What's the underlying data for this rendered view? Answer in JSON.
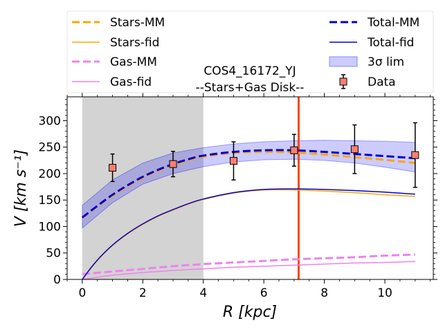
{
  "chart_data": {
    "type": "line",
    "title": "COS4_16172_YJ",
    "subtitle": "--Stars+Gas Disk--",
    "xlabel": "R [kpc]",
    "ylabel": "V [km s⁻¹]",
    "xlim": [
      -0.5,
      11.6
    ],
    "ylim": [
      0,
      345
    ],
    "xticks": [
      0,
      2,
      4,
      6,
      8,
      10
    ],
    "yticks": [
      0,
      50,
      100,
      150,
      200,
      250,
      300
    ],
    "grid": false,
    "legend_position": "top",
    "shaded_region": {
      "x_start": 0,
      "x_end": 4,
      "color": "#d3d3d3"
    },
    "vertical_line": {
      "x": 7.15,
      "color": "#ff4500"
    },
    "band": {
      "name": "3σ lim",
      "color": "#0000ff",
      "x": [
        0,
        1,
        2,
        3,
        4,
        5,
        6,
        7,
        8,
        9,
        10,
        11
      ],
      "lower": [
        97,
        145,
        180,
        200,
        213,
        222,
        226,
        227,
        225,
        220,
        212,
        203
      ],
      "upper": [
        140,
        188,
        220,
        239,
        249,
        256,
        260,
        262,
        263,
        262,
        261,
        259
      ]
    },
    "series": [
      {
        "name": "Stars-MM",
        "style": "dashed",
        "color": "#ffa500",
        "width": 3,
        "x": [
          0,
          0.5,
          1,
          1.5,
          2,
          2.5,
          3,
          3.5,
          4,
          5,
          6,
          7,
          8,
          9,
          10,
          11
        ],
        "y": [
          116,
          138,
          158,
          176,
          192,
          205,
          216,
          225,
          232,
          239,
          241,
          240,
          236,
          231,
          226,
          220
        ]
      },
      {
        "name": "Stars-fid",
        "style": "solid",
        "color": "#ffa500",
        "width": 1.5,
        "x": [
          0,
          0.3,
          0.6,
          1,
          1.5,
          2,
          2.5,
          3,
          3.5,
          4,
          5,
          6,
          7,
          8,
          9,
          10,
          11
        ],
        "y": [
          0,
          22,
          42,
          64,
          86,
          104,
          119,
          131,
          142,
          151,
          163,
          169,
          169,
          167,
          164,
          160,
          157
        ]
      },
      {
        "name": "Gas-MM",
        "style": "dashed",
        "color": "#ee82ee",
        "width": 3,
        "x": [
          0,
          1,
          2,
          3,
          4,
          5,
          6,
          7,
          8,
          9,
          10,
          11
        ],
        "y": [
          10,
          15,
          20,
          25,
          29,
          32,
          35,
          38,
          40,
          42,
          45,
          47
        ]
      },
      {
        "name": "Gas-fid",
        "style": "solid",
        "color": "#ee82ee",
        "width": 1.5,
        "x": [
          0,
          1,
          2,
          3,
          4,
          5,
          6,
          7,
          8,
          9,
          10,
          11
        ],
        "y": [
          0,
          8,
          13,
          17,
          20,
          23,
          25,
          27,
          29,
          31,
          32,
          34
        ]
      },
      {
        "name": "Total-MM",
        "style": "dashed",
        "color": "#0000cd",
        "width": 3,
        "x": [
          0,
          0.5,
          1,
          1.5,
          2,
          2.5,
          3,
          3.5,
          4,
          5,
          6,
          7,
          8,
          9,
          10,
          11
        ],
        "y": [
          117,
          139,
          160,
          178,
          194,
          207,
          218,
          227,
          234,
          241,
          244,
          244,
          241,
          237,
          233,
          229
        ]
      },
      {
        "name": "Total-fid",
        "style": "solid",
        "color": "#0000cd",
        "width": 1.5,
        "x": [
          0,
          0.3,
          0.6,
          1,
          1.5,
          2,
          2.5,
          3,
          3.5,
          4,
          5,
          6,
          7,
          8,
          9,
          10,
          11
        ],
        "y": [
          0,
          23,
          43,
          65,
          87,
          105,
          120,
          132,
          143,
          152,
          164,
          170,
          171,
          170,
          168,
          165,
          161
        ]
      }
    ],
    "data_points": {
      "name": "Data",
      "color": "#fa8072",
      "x": [
        1,
        3,
        5,
        7,
        9,
        11
      ],
      "y": [
        211,
        218,
        224,
        244,
        246,
        235
      ],
      "yerr": [
        26,
        24,
        36,
        30,
        46,
        61
      ]
    },
    "legend_left": [
      "Stars-MM",
      "Stars-fid",
      "Gas-MM",
      "Gas-fid"
    ],
    "legend_right": [
      "Total-MM",
      "Total-fid",
      "3σ lim",
      "Data"
    ]
  }
}
